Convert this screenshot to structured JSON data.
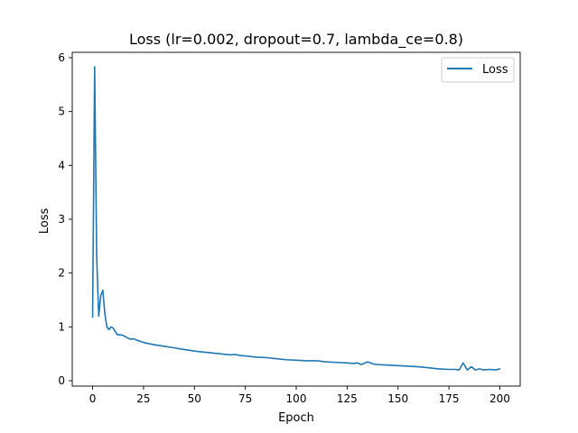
{
  "chart_data": {
    "type": "line",
    "title": "Loss (lr=0.002, dropout=0.7, lambda_ce=0.8)",
    "xlabel": "Epoch",
    "ylabel": "Loss",
    "xlim": [
      -10,
      210
    ],
    "ylim": [
      -0.1,
      6.1
    ],
    "xticks": [
      0,
      25,
      50,
      75,
      100,
      125,
      150,
      175,
      200
    ],
    "yticks": [
      0,
      1,
      2,
      3,
      4,
      5,
      6
    ],
    "grid": false,
    "legend_position": "top-right",
    "series": [
      {
        "name": "Loss",
        "color": "#1f77b4",
        "x": [
          0,
          1,
          2,
          3,
          4,
          5,
          6,
          7,
          8,
          9,
          10,
          11,
          12,
          13,
          14,
          15,
          16,
          17,
          18,
          19,
          20,
          22,
          25,
          30,
          35,
          40,
          45,
          50,
          55,
          60,
          65,
          68,
          70,
          72,
          75,
          80,
          85,
          90,
          95,
          100,
          105,
          110,
          115,
          120,
          125,
          128,
          130,
          132,
          135,
          138,
          140,
          145,
          150,
          155,
          160,
          165,
          170,
          175,
          178,
          180,
          182,
          184,
          186,
          188,
          190,
          192,
          195,
          198,
          200
        ],
        "y": [
          1.18,
          5.83,
          2.3,
          1.2,
          1.58,
          1.68,
          1.25,
          1.0,
          0.95,
          1.0,
          0.98,
          0.92,
          0.86,
          0.85,
          0.85,
          0.84,
          0.82,
          0.8,
          0.78,
          0.77,
          0.78,
          0.75,
          0.71,
          0.67,
          0.64,
          0.61,
          0.58,
          0.55,
          0.53,
          0.51,
          0.49,
          0.48,
          0.49,
          0.47,
          0.46,
          0.44,
          0.43,
          0.41,
          0.39,
          0.38,
          0.37,
          0.37,
          0.35,
          0.34,
          0.33,
          0.32,
          0.33,
          0.3,
          0.35,
          0.31,
          0.3,
          0.29,
          0.28,
          0.27,
          0.26,
          0.24,
          0.22,
          0.21,
          0.21,
          0.2,
          0.33,
          0.2,
          0.26,
          0.2,
          0.22,
          0.2,
          0.21,
          0.2,
          0.22
        ]
      }
    ]
  }
}
